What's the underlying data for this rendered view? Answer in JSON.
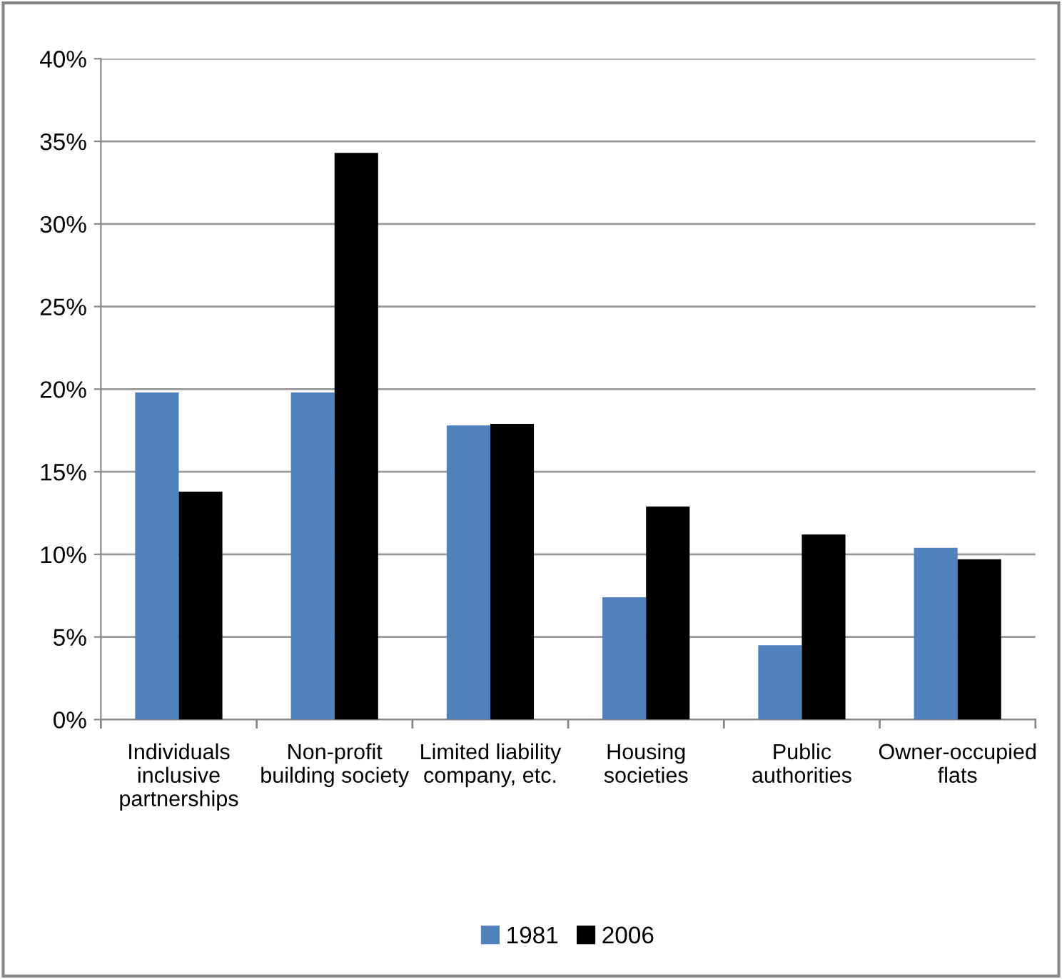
{
  "chart_data": {
    "type": "bar",
    "categories": [
      "Individuals\ninclusive\npartnerships",
      "Non-profit\nbuilding society",
      "Limited liability\ncompany, etc.",
      "Housing\nsocieties",
      "Public\nauthorities",
      "Owner-occupied\nflats"
    ],
    "series": [
      {
        "name": "1981",
        "color": "#4f81bd",
        "values": [
          19.8,
          19.8,
          17.8,
          7.4,
          4.5,
          10.4
        ]
      },
      {
        "name": "2006",
        "color": "#000000",
        "values": [
          13.8,
          34.3,
          17.9,
          12.9,
          11.2,
          9.7
        ]
      }
    ],
    "ylim": [
      0,
      40
    ],
    "yticks": [
      {
        "value": 0,
        "label": "0%"
      },
      {
        "value": 5,
        "label": "5%"
      },
      {
        "value": 10,
        "label": "10%"
      },
      {
        "value": 15,
        "label": "15%"
      },
      {
        "value": 20,
        "label": "20%"
      },
      {
        "value": 25,
        "label": "25%"
      },
      {
        "value": 30,
        "label": "30%"
      },
      {
        "value": 35,
        "label": "35%"
      },
      {
        "value": 40,
        "label": "40%"
      }
    ],
    "grid": "y",
    "legend": "bottom"
  }
}
